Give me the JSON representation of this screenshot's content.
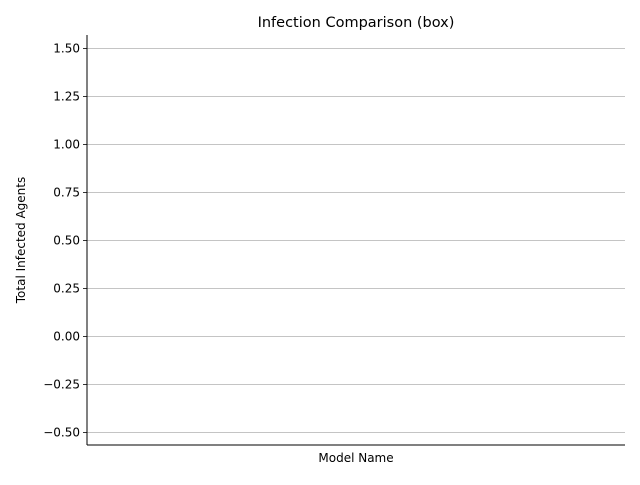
{
  "chart_data": {
    "type": "box",
    "title": "Infection Comparison (box)",
    "xlabel": "Model Name",
    "ylabel": "Total Infected Agents",
    "ylim": [
      -0.57,
      1.57
    ],
    "y_ticks": [
      -0.5,
      -0.25,
      0.0,
      0.25,
      0.5,
      0.75,
      1.0,
      1.25,
      1.5
    ],
    "y_tick_labels": [
      "−0.50",
      "−0.25",
      "0.00",
      "0.25",
      "0.50",
      "0.75",
      "1.00",
      "1.25",
      "1.50"
    ],
    "categories": [],
    "series": [],
    "grid": "y-major",
    "colors": {
      "grid": "#b0b0b0",
      "axis": "#000000",
      "background": "#ffffff"
    }
  }
}
